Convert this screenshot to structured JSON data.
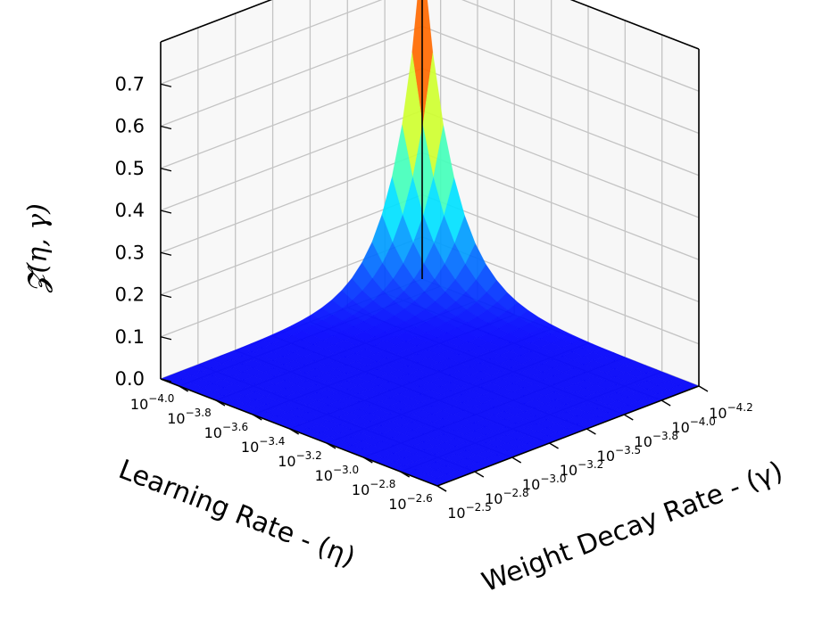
{
  "chart_data": {
    "type": "surface3d",
    "title": "",
    "xlabel": "Learning Rate - (η)",
    "ylabel": "Weight Decay Rate - (γ)",
    "zlabel": "𝓩(η, γ)",
    "x_scale": "log10",
    "y_scale": "log10",
    "x_log_range": [
      -4.1,
      -2.6
    ],
    "y_log_range": [
      -4.25,
      -2.5
    ],
    "zlim": [
      0,
      0.8
    ],
    "x_ticks": [
      {
        "exp": -4.0,
        "label": "−4.0"
      },
      {
        "exp": -3.8,
        "label": "−3.8"
      },
      {
        "exp": -3.6,
        "label": "−3.6"
      },
      {
        "exp": -3.4,
        "label": "−3.4"
      },
      {
        "exp": -3.2,
        "label": "−3.2"
      },
      {
        "exp": -3.0,
        "label": "−3.0"
      },
      {
        "exp": -2.8,
        "label": "−2.8"
      },
      {
        "exp": -2.6,
        "label": "−2.6"
      }
    ],
    "y_ticks": [
      {
        "exp": -2.5,
        "label": "−2.5"
      },
      {
        "exp": -2.75,
        "label": "−2.8"
      },
      {
        "exp": -3.0,
        "label": "−3.0"
      },
      {
        "exp": -3.25,
        "label": "−3.2"
      },
      {
        "exp": -3.5,
        "label": "−3.5"
      },
      {
        "exp": -3.75,
        "label": "−3.8"
      },
      {
        "exp": -4.0,
        "label": "−4.0"
      },
      {
        "exp": -4.25,
        "label": "−4.2"
      }
    ],
    "z_ticks": [
      "0.0",
      "0.1",
      "0.2",
      "0.3",
      "0.4",
      "0.5",
      "0.6",
      "0.7"
    ],
    "z_max_value": 0.78,
    "surface_peak": {
      "learning_rate_exp": -4.1,
      "weight_decay_exp": -4.25,
      "value": 0.78
    },
    "grid": true,
    "colormap": "jet"
  }
}
